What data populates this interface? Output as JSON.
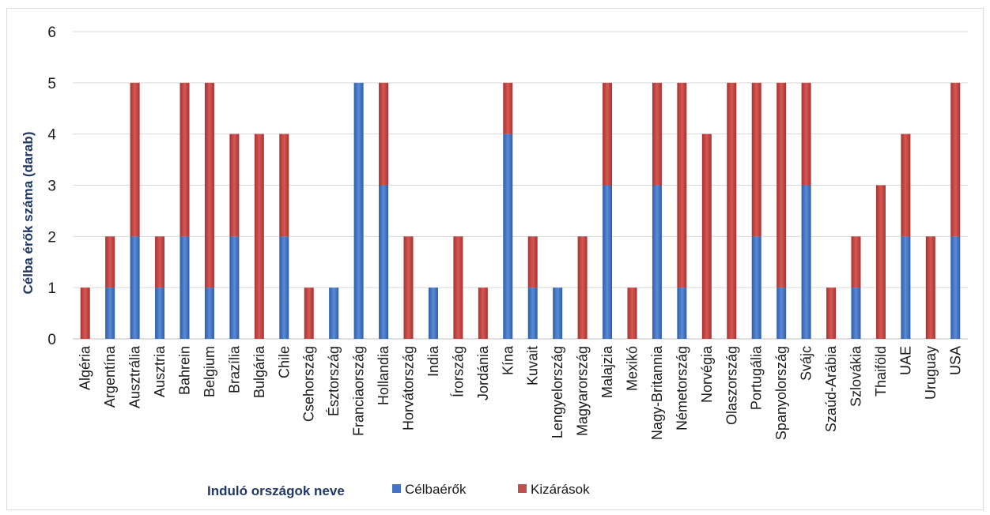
{
  "chart_data": {
    "type": "bar",
    "stacked": true,
    "ylabel": "Célba érők száma (darab)",
    "xlabel": "Induló országok neve",
    "ylim": [
      0,
      6
    ],
    "yticks": [
      "0",
      "1",
      "2",
      "3",
      "4",
      "5",
      "6"
    ],
    "grid": true,
    "legend_position": "bottom",
    "categories": [
      "Algéria",
      "Argentína",
      "Ausztrália",
      "Ausztria",
      "Bahrein",
      "Belgium",
      "Brazília",
      "Bulgária",
      "Chile",
      "Csehország",
      "Észtország",
      "Franciaország",
      "Hollandia",
      "Horvátország",
      "India",
      "Írország",
      "Jordánia",
      "Kína",
      "Kuvait",
      "Lengyelország",
      "Magyarország",
      "Malajzia",
      "Mexikó",
      "Nagy-Britannia",
      "Németország",
      "Norvégia",
      "Olaszország",
      "Portugália",
      "Spanyolország",
      "Svájc",
      "Szaúd-Arábia",
      "Szlovákia",
      "Thaiföld",
      "UAE",
      "Uruguay",
      "USA"
    ],
    "series": [
      {
        "name": "Célbaérők",
        "color": "#4472c4",
        "values": [
          0,
          1,
          2,
          1,
          2,
          1,
          2,
          0,
          2,
          0,
          1,
          5,
          3,
          0,
          1,
          0,
          0,
          4,
          1,
          1,
          0,
          3,
          0,
          3,
          1,
          0,
          0,
          2,
          1,
          3,
          0,
          1,
          0,
          2,
          0,
          2
        ]
      },
      {
        "name": "Kizárások",
        "color": "#c0504d",
        "values": [
          1,
          1,
          3,
          1,
          3,
          4,
          2,
          4,
          2,
          1,
          0,
          0,
          2,
          2,
          0,
          2,
          1,
          1,
          1,
          0,
          2,
          2,
          1,
          2,
          4,
          4,
          5,
          3,
          4,
          2,
          1,
          1,
          3,
          2,
          2,
          3
        ]
      }
    ]
  }
}
